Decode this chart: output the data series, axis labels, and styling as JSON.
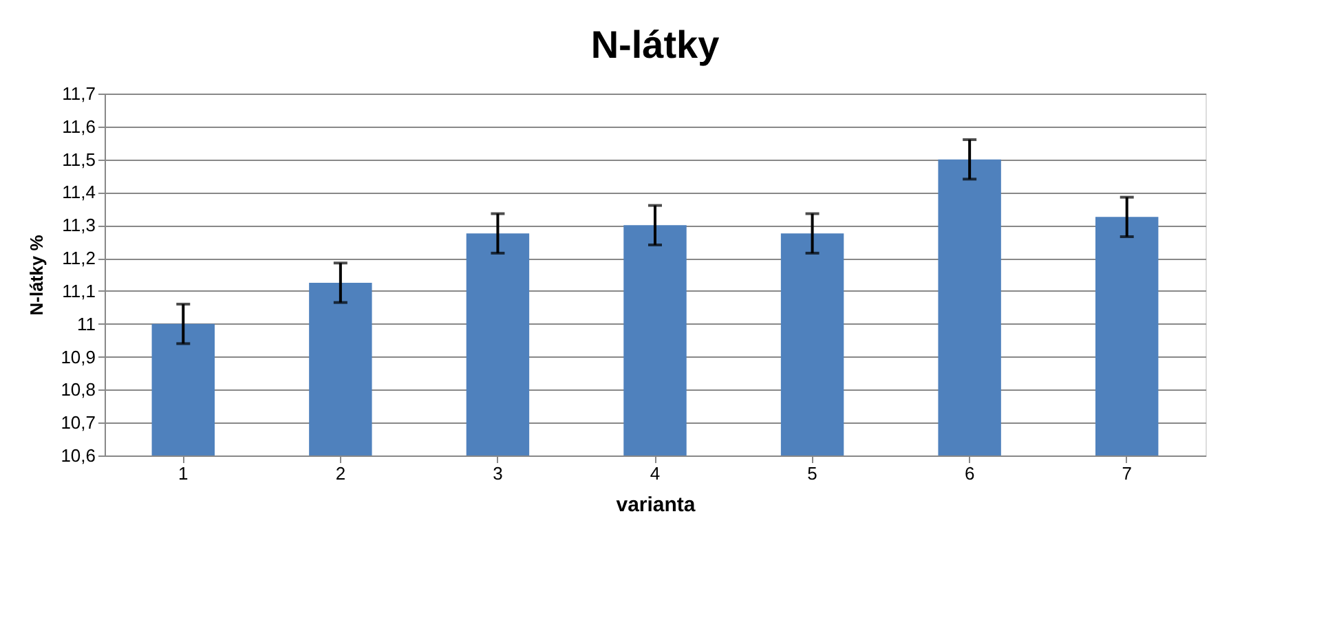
{
  "chart_data": {
    "type": "bar",
    "title": "N-látky",
    "xlabel": "varianta",
    "ylabel": "N-látky %",
    "categories": [
      "1",
      "2",
      "3",
      "4",
      "5",
      "6",
      "7"
    ],
    "values": [
      11.0,
      11.125,
      11.275,
      11.3,
      11.275,
      11.5,
      11.325
    ],
    "errors": [
      0.06,
      0.06,
      0.06,
      0.06,
      0.06,
      0.06,
      0.06
    ],
    "color": "#4f81bd",
    "ylim": [
      10.6,
      11.7
    ],
    "yticks": [
      {
        "value": 10.6,
        "label": "10,6"
      },
      {
        "value": 10.7,
        "label": "10,7"
      },
      {
        "value": 10.8,
        "label": "10,8"
      },
      {
        "value": 10.9,
        "label": "10,9"
      },
      11,
      {
        "value": 11.1,
        "label": "11,1"
      },
      {
        "value": 11.2,
        "label": "11,2"
      },
      {
        "value": 11.3,
        "label": "11,3"
      },
      {
        "value": 11.4,
        "label": "11,4"
      },
      {
        "value": 11.5,
        "label": "11,5"
      },
      {
        "value": 11.6,
        "label": "11,6"
      },
      {
        "value": 11.7,
        "label": "11,7"
      }
    ],
    "grid": "y"
  }
}
